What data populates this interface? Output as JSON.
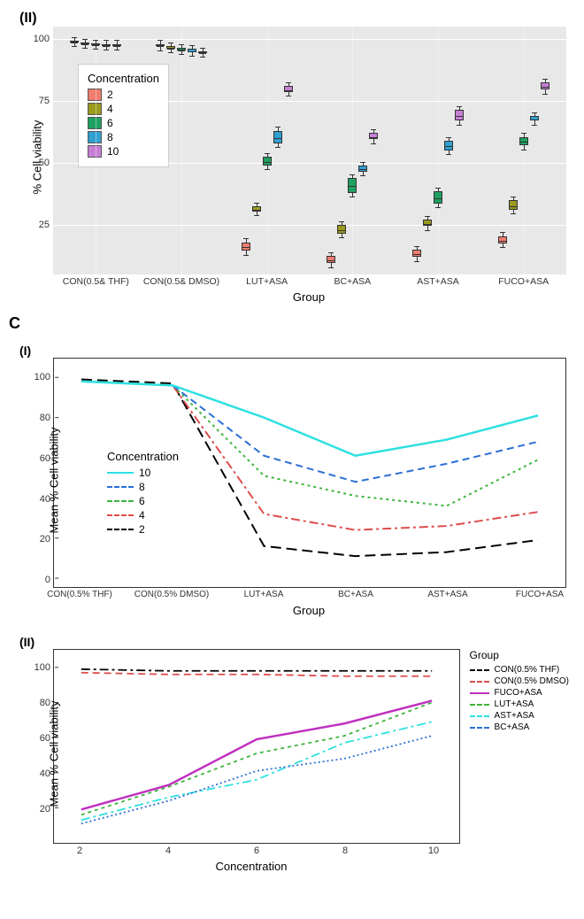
{
  "panel_II_label": "(II)",
  "panel_CI_label": "(I)",
  "panel_CII_label": "(II)",
  "section_C_label": "C",
  "colors": {
    "conc": {
      "2": "#f07d6f",
      "4": "#9b9a1f",
      "6": "#1fa060",
      "8": "#2fa0d0",
      "10": "#c77fd5"
    },
    "line_10": "#2de0e0",
    "line_8": "#2a6fd6",
    "line_6": "#3db33d",
    "line_4": "#de4c4c",
    "line_2": "#000000",
    "group_lines": {
      "con_thf": "#000000",
      "con_dmso": "#de4c4c",
      "fuco": "#c030c0",
      "lut": "#3db33d",
      "ast": "#2de0e0",
      "bc": "#2a6fd6"
    },
    "panel_bg": "#e8e8e8",
    "grid": "#ffffff"
  },
  "panelII": {
    "title_y": "% Cell viability",
    "title_x": "Group",
    "legend_title": "Concentration",
    "legend_items": [
      "2",
      "4",
      "6",
      "8",
      "10"
    ],
    "y_ticks": [
      25,
      50,
      75,
      100
    ],
    "x_labels": [
      "CON(0.5& THF)",
      "CON(0.5& DMSO)",
      "LUT+ASA",
      "BC+ASA",
      "AST+ASA",
      "FUCO+ASA"
    ],
    "groups": [
      {
        "name": "CON(0.5& THF)",
        "values": {
          "2": [
            98.5,
            99.2
          ],
          "4": [
            97.8,
            98.5
          ],
          "6": [
            97.5,
            98.3
          ],
          "8": [
            97.3,
            98.0
          ],
          "10": [
            97.2,
            98.0
          ]
        }
      },
      {
        "name": "CON(0.5& DMSO)",
        "values": {
          "2": [
            97.0,
            98.0
          ],
          "4": [
            96.0,
            97.0
          ],
          "6": [
            95.3,
            96.3
          ],
          "8": [
            94.8,
            96.0
          ],
          "10": [
            94.2,
            95.0
          ]
        }
      },
      {
        "name": "LUT+ASA",
        "values": {
          "2": [
            14.5,
            18.0
          ],
          "4": [
            30.5,
            32.5
          ],
          "6": [
            49.0,
            52.5
          ],
          "8": [
            58.0,
            63.0
          ],
          "10": [
            78.5,
            81.0
          ]
        }
      },
      {
        "name": "BC+ASA",
        "values": {
          "2": [
            9.5,
            12.5
          ],
          "4": [
            21.5,
            25.0
          ],
          "6": [
            38.0,
            44.0
          ],
          "8": [
            46.5,
            49.0
          ],
          "10": [
            59.5,
            62.0
          ]
        }
      },
      {
        "name": "AST+ASA",
        "values": {
          "2": [
            12.0,
            15.0
          ],
          "4": [
            24.5,
            27.0
          ],
          "6": [
            33.5,
            38.5
          ],
          "8": [
            55.0,
            59.0
          ],
          "10": [
            67.0,
            71.5
          ]
        }
      },
      {
        "name": "FUCO+ASA",
        "values": {
          "2": [
            17.5,
            20.5
          ],
          "4": [
            31.0,
            35.0
          ],
          "6": [
            57.0,
            60.5
          ],
          "8": [
            67.0,
            69.0
          ],
          "10": [
            79.5,
            82.5
          ]
        }
      }
    ]
  },
  "panelCI": {
    "title_y": "Mean % Cell viability",
    "title_x": "Group",
    "legend_title": "Concentration",
    "legend_items": [
      "10",
      "8",
      "6",
      "4",
      "2"
    ],
    "y_ticks": [
      0,
      20,
      40,
      60,
      80,
      100
    ],
    "x_labels": [
      "CON(0.5% THF)",
      "CON(0.5% DMSO)",
      "LUT+ASA",
      "BC+ASA",
      "AST+ASA",
      "FUCO+ASA"
    ],
    "series": {
      "10": [
        98,
        96,
        80,
        61,
        69,
        81
      ],
      "8": [
        98,
        96,
        61,
        48,
        57,
        68
      ],
      "6": [
        98,
        96,
        51,
        41,
        36,
        59
      ],
      "4": [
        98,
        96,
        32,
        24,
        26,
        33
      ],
      "2": [
        99,
        97,
        16,
        11,
        13,
        19
      ]
    }
  },
  "panelCII": {
    "title_y": "Mean % Cell viability",
    "title_x": "Concentration",
    "legend_title": "Group",
    "y_ticks": [
      20,
      40,
      60,
      80,
      100
    ],
    "x_labels": [
      "2",
      "4",
      "6",
      "8",
      "10"
    ],
    "legend_items": [
      "CON(0.5% THF)",
      "CON(0.5% DMSO)",
      "FUCO+ASA",
      "LUT+ASA",
      "AST+ASA",
      "BC+ASA"
    ],
    "series": {
      "CON(0.5% THF)": [
        99,
        98,
        98,
        98,
        98
      ],
      "CON(0.5% DMSO)": [
        97,
        96,
        96,
        95,
        95
      ],
      "FUCO+ASA": [
        19,
        33,
        59,
        68,
        81
      ],
      "LUT+ASA": [
        16,
        32,
        51,
        61,
        80
      ],
      "AST+ASA": [
        13,
        26,
        36,
        57,
        69
      ],
      "BC+ASA": [
        11,
        24,
        41,
        48,
        61
      ]
    }
  }
}
